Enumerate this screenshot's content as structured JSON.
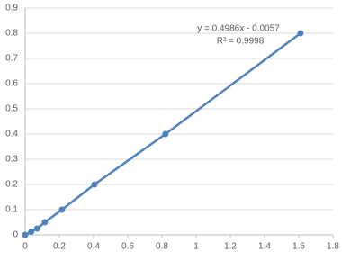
{
  "chart_data": {
    "type": "scatter",
    "series": [
      {
        "color": "#4f81bd",
        "x": [
          0,
          0.035,
          0.07,
          0.115,
          0.215,
          0.405,
          0.82,
          1.61
        ],
        "values": [
          0,
          0.0125,
          0.025,
          0.05,
          0.1,
          0.2,
          0.4,
          0.8
        ]
      }
    ],
    "trendline": {
      "equation": "y = 0.4986x - 0.0057",
      "r_squared": "R² = 0.9998"
    },
    "xlim": [
      0,
      1.8
    ],
    "xticks": [
      0,
      0.2,
      0.4,
      0.6,
      0.8,
      1,
      1.2,
      1.4,
      1.6,
      1.8
    ],
    "ylim": [
      0,
      0.9
    ],
    "yticks": [
      0,
      0.1,
      0.2,
      0.3,
      0.4,
      0.5,
      0.6,
      0.7,
      0.8,
      0.9
    ],
    "grid": true
  }
}
